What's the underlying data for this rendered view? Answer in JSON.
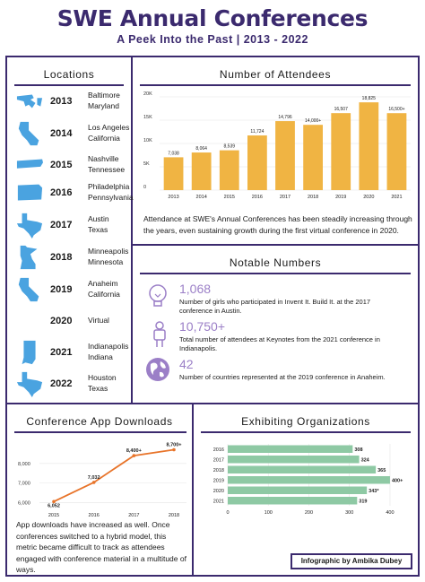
{
  "header": {
    "title": "SWE Annual Conferences",
    "subtitle": "A Peek Into the Past | 2013 - 2022"
  },
  "locations": {
    "title": "Locations",
    "items": [
      {
        "year": "2013",
        "city": "Baltimore",
        "state": "Maryland",
        "icon": "maryland-icon"
      },
      {
        "year": "2014",
        "city": "Los Angeles",
        "state": "California",
        "icon": "california-icon"
      },
      {
        "year": "2015",
        "city": "Nashville",
        "state": "Tennessee",
        "icon": "tennessee-icon"
      },
      {
        "year": "2016",
        "city": "Philadelphia",
        "state": "Pennsylvania",
        "icon": "pennsylvania-icon"
      },
      {
        "year": "2017",
        "city": "Austin",
        "state": "Texas",
        "icon": "texas-icon"
      },
      {
        "year": "2018",
        "city": "Minneapolis",
        "state": "Minnesota",
        "icon": "minnesota-icon"
      },
      {
        "year": "2019",
        "city": "Anaheim",
        "state": "California",
        "icon": "california-icon"
      },
      {
        "year": "2020",
        "city": "Virtual",
        "state": "",
        "icon": ""
      },
      {
        "year": "2021",
        "city": "Indianapolis",
        "state": "Indiana",
        "icon": "indiana-icon"
      },
      {
        "year": "2022",
        "city": "Houston",
        "state": "Texas",
        "icon": "texas-icon"
      }
    ]
  },
  "attendees": {
    "title": "Number of Attendees",
    "text": "Attendance at SWE's Annual Conferences has been steadily increasing through the years, even sustaining growth during the first virtual conference in 2020."
  },
  "numbers": {
    "title": "Notable Numbers",
    "items": [
      {
        "value": "1,068",
        "desc": "Number of girls who participated in Invent It. Build It. at the 2017 conference in Austin.",
        "icon": "lightbulb-icon"
      },
      {
        "value": "10,750+",
        "desc": "Total number of attendees at Keynotes from the 2021 conference in Indianapolis.",
        "icon": "person-icon"
      },
      {
        "value": "42",
        "desc": "Number of countries represented at the 2019 conference in Anaheim.",
        "icon": "globe-icon"
      }
    ]
  },
  "downloads": {
    "title": "Conference App Downloads",
    "text": "App downloads have increased as well. Once conferences switched to a hybrid model, this metric became difficult to track as attendees engaged with conference material in a multitude of ways."
  },
  "exhibiting": {
    "title": "Exhibiting Organizations"
  },
  "credit": "Infographic by Ambika Dubey",
  "colors": {
    "purple": "#3b2a6e",
    "bar": "#f0b443",
    "line": "#e8742a",
    "green": "#8ec9a4",
    "icon_blue": "#4aa3e0",
    "accent": "#9b7fc7"
  },
  "chart_data": [
    {
      "type": "bar",
      "categories": [
        "2013",
        "2014",
        "2015",
        "2016",
        "2017",
        "2018",
        "2019",
        "2020",
        "2021"
      ],
      "values": [
        7038,
        8064,
        8539,
        11724,
        14796,
        14000,
        16507,
        18825,
        16500
      ],
      "labels": [
        "7,038",
        "8,064",
        "8,539",
        "11,724",
        "14,796",
        "14,000+",
        "16,507",
        "18,825",
        "16,500+"
      ],
      "yticks": [
        0,
        5000,
        10000,
        15000,
        20000
      ],
      "ytick_labels": [
        "0",
        "5K",
        "10K",
        "15K",
        "20K"
      ],
      "ylim": [
        0,
        20000
      ]
    },
    {
      "type": "line",
      "x": [
        "2015",
        "2016",
        "2017",
        "2018"
      ],
      "values": [
        6052,
        7032,
        8400,
        8700
      ],
      "labels": [
        "6,052",
        "7,032",
        "8,400+",
        "8,700+"
      ],
      "yticks": [
        6000,
        7000,
        8000
      ],
      "ytick_labels": [
        "6,000",
        "7,000",
        "8,000"
      ],
      "ylim": [
        5700,
        9000
      ]
    },
    {
      "type": "bar",
      "orientation": "horizontal",
      "categories": [
        "2016",
        "2017",
        "2018",
        "2019",
        "2020",
        "2021"
      ],
      "values": [
        308,
        324,
        365,
        400,
        343,
        319
      ],
      "labels": [
        "308",
        "324",
        "365",
        "400+",
        "343*",
        "319"
      ],
      "xticks": [
        0,
        100,
        200,
        300,
        400
      ],
      "xlim": [
        0,
        420
      ]
    }
  ]
}
